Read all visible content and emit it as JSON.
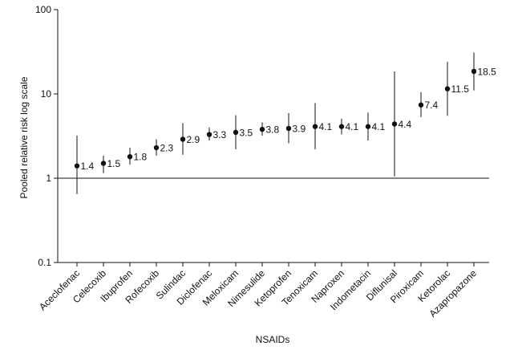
{
  "chart_data": {
    "type": "scatter",
    "xlabel": "NSAIDs",
    "ylabel": "Pooled relative risk log scale",
    "yscale": "log",
    "ylim": [
      0.1,
      100
    ],
    "yticks": [
      {
        "value": 100,
        "label": "100"
      },
      {
        "value": 10,
        "label": "10"
      },
      {
        "value": 1,
        "label": "1"
      },
      {
        "value": 0.1,
        "label": "0.1"
      }
    ],
    "reference_line": 1,
    "grid": false,
    "categories": [
      "Aceclofenac",
      "Celecoxib",
      "Ibuprofen",
      "Rofecoxib",
      "Sulindac",
      "Diclofenac",
      "Meloxicam",
      "Nimesulide",
      "Ketoprofen",
      "Tenoxicam",
      "Naproxen",
      "Indometacin",
      "Diflunisal",
      "Piroxicam",
      "Ketorolac",
      "Azapropazone"
    ],
    "points": [
      {
        "name": "Aceclofenac",
        "value": 1.4,
        "label": "1.4",
        "low": 0.65,
        "high": 3.2
      },
      {
        "name": "Celecoxib",
        "value": 1.5,
        "label": "1.5",
        "low": 1.15,
        "high": 1.85
      },
      {
        "name": "Ibuprofen",
        "value": 1.8,
        "label": "1.8",
        "low": 1.45,
        "high": 2.3
      },
      {
        "name": "Rofecoxib",
        "value": 2.3,
        "label": "2.3",
        "low": 1.85,
        "high": 2.9
      },
      {
        "name": "Sulindac",
        "value": 2.9,
        "label": "2.9",
        "low": 1.9,
        "high": 4.5
      },
      {
        "name": "Diclofenac",
        "value": 3.3,
        "label": "3.3",
        "low": 2.8,
        "high": 4.0
      },
      {
        "name": "Meloxicam",
        "value": 3.5,
        "label": "3.5",
        "low": 2.2,
        "high": 5.6
      },
      {
        "name": "Nimesulide",
        "value": 3.8,
        "label": "3.8",
        "low": 3.2,
        "high": 4.6
      },
      {
        "name": "Ketoprofen",
        "value": 3.9,
        "label": "3.9",
        "low": 2.6,
        "high": 5.9
      },
      {
        "name": "Tenoxicam",
        "value": 4.1,
        "label": "4.1",
        "low": 2.2,
        "high": 7.8
      },
      {
        "name": "Naproxen",
        "value": 4.1,
        "label": "4.1",
        "low": 3.3,
        "high": 5.1
      },
      {
        "name": "Indometacin",
        "value": 4.1,
        "label": "4.1",
        "low": 2.8,
        "high": 6.0
      },
      {
        "name": "Diflunisal",
        "value": 4.4,
        "label": "4.4",
        "low": 1.05,
        "high": 18.5
      },
      {
        "name": "Piroxicam",
        "value": 7.4,
        "label": "7.4",
        "low": 5.3,
        "high": 10.5
      },
      {
        "name": "Ketorolac",
        "value": 11.5,
        "label": "11.5",
        "low": 5.5,
        "high": 24.0
      },
      {
        "name": "Azapropazone",
        "value": 18.5,
        "label": "18.5",
        "low": 11.0,
        "high": 31.0
      }
    ]
  }
}
